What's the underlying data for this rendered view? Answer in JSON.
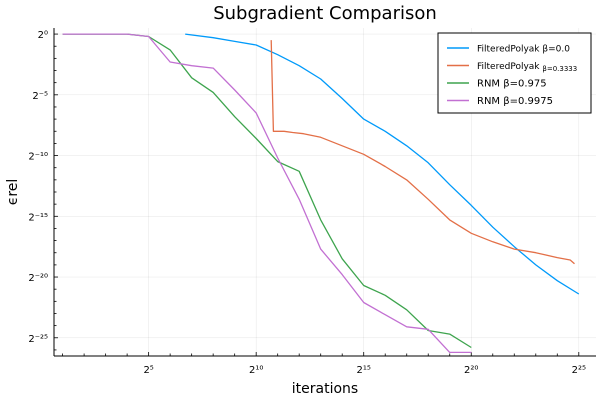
{
  "chart_data": {
    "type": "line",
    "title": "Subgradient Comparison",
    "xlabel": "iterations",
    "ylabel": "ϵrel",
    "x_scale": "log2",
    "y_scale": "log2",
    "grid": true,
    "legend_position": "top-right",
    "xlim_log2": [
      0.6,
      25.8
    ],
    "ylim_log2": [
      -26.5,
      0.5
    ],
    "x_ticks": [
      {
        "exp": 5,
        "label": "2⁵"
      },
      {
        "exp": 10,
        "label": "2¹⁰"
      },
      {
        "exp": 15,
        "label": "2¹⁵"
      },
      {
        "exp": 20,
        "label": "2²⁰"
      },
      {
        "exp": 25,
        "label": "2²⁵"
      }
    ],
    "y_ticks": [
      {
        "exp": 0,
        "label": "2⁰"
      },
      {
        "exp": -5,
        "label": "2⁻⁵"
      },
      {
        "exp": -10,
        "label": "2⁻¹⁰"
      },
      {
        "exp": -15,
        "label": "2⁻¹⁵"
      },
      {
        "exp": -20,
        "label": "2⁻²⁰"
      },
      {
        "exp": -25,
        "label": "2⁻²⁵"
      }
    ],
    "series": [
      {
        "name": "FilteredPolyak",
        "name_suffix": "β=0.0",
        "color": "#009AFA",
        "points_log2": [
          [
            6.7,
            0.0
          ],
          [
            8,
            -0.3
          ],
          [
            9,
            -0.6
          ],
          [
            10,
            -0.9
          ],
          [
            11,
            -1.7
          ],
          [
            12,
            -2.6
          ],
          [
            13,
            -3.7
          ],
          [
            14,
            -5.3
          ],
          [
            15,
            -7.0
          ],
          [
            16,
            -8.0
          ],
          [
            17,
            -9.2
          ],
          [
            18,
            -10.6
          ],
          [
            19,
            -12.4
          ],
          [
            20,
            -14.1
          ],
          [
            21,
            -15.9
          ],
          [
            22,
            -17.5
          ],
          [
            23,
            -19.0
          ],
          [
            24,
            -20.3
          ],
          [
            25,
            -21.4
          ]
        ]
      },
      {
        "name": "FilteredPolyak",
        "name_suffix": "β=0.3333",
        "color": "#E36F47",
        "points_log2": [
          [
            10.7,
            -0.5
          ],
          [
            10.8,
            -8.0
          ],
          [
            11.3,
            -8.0
          ],
          [
            11.7,
            -8.1
          ],
          [
            12.2,
            -8.2
          ],
          [
            13,
            -8.5
          ],
          [
            14,
            -9.2
          ],
          [
            15,
            -9.9
          ],
          [
            16,
            -10.9
          ],
          [
            17,
            -12.0
          ],
          [
            18,
            -13.6
          ],
          [
            19,
            -15.3
          ],
          [
            20,
            -16.4
          ],
          [
            21,
            -17.1
          ],
          [
            22,
            -17.7
          ],
          [
            23,
            -18.0
          ],
          [
            24,
            -18.4
          ],
          [
            24.6,
            -18.6
          ],
          [
            24.8,
            -18.9
          ]
        ]
      },
      {
        "name": "RNM",
        "name_suffix": "β=0.975",
        "color": "#3EA44E",
        "points_log2": [
          [
            1,
            0.0
          ],
          [
            2,
            0.0
          ],
          [
            3,
            0.0
          ],
          [
            4,
            0.0
          ],
          [
            5,
            -0.2
          ],
          [
            6,
            -1.3
          ],
          [
            7,
            -3.6
          ],
          [
            8,
            -4.8
          ],
          [
            9,
            -6.8
          ],
          [
            10,
            -8.6
          ],
          [
            11,
            -10.5
          ],
          [
            12,
            -11.3
          ],
          [
            13,
            -15.3
          ],
          [
            14,
            -18.5
          ],
          [
            15,
            -20.7
          ],
          [
            16,
            -21.5
          ],
          [
            17,
            -22.7
          ],
          [
            18,
            -24.4
          ],
          [
            19,
            -24.7
          ],
          [
            20,
            -25.8
          ]
        ]
      },
      {
        "name": "RNM",
        "name_suffix": "β=0.9975",
        "color": "#C270D2",
        "points_log2": [
          [
            1,
            0.0
          ],
          [
            2,
            0.0
          ],
          [
            3,
            0.0
          ],
          [
            4,
            0.0
          ],
          [
            5,
            -0.2
          ],
          [
            6,
            -2.3
          ],
          [
            7,
            -2.6
          ],
          [
            8,
            -2.8
          ],
          [
            9,
            -4.6
          ],
          [
            10,
            -6.5
          ],
          [
            11,
            -10.2
          ],
          [
            12,
            -13.6
          ],
          [
            13,
            -17.7
          ],
          [
            14,
            -19.8
          ],
          [
            15,
            -22.1
          ],
          [
            16,
            -23.1
          ],
          [
            17,
            -24.1
          ],
          [
            18,
            -24.3
          ],
          [
            19,
            -26.2
          ],
          [
            20,
            -26.2
          ]
        ]
      }
    ]
  }
}
